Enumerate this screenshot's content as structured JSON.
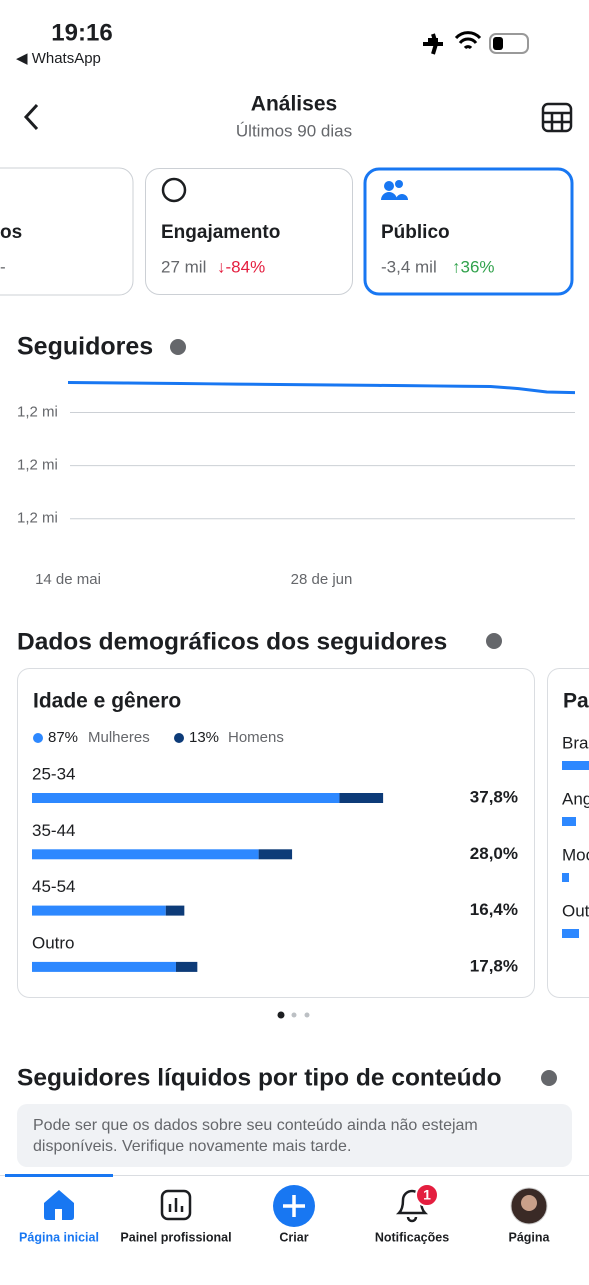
{
  "status_bar": {
    "time": "19:16",
    "back_app": "◀ WhatsApp"
  },
  "header": {
    "title": "Análises",
    "subtitle": "Últimos 90 dias"
  },
  "metric_cards": [
    {
      "title": "os",
      "value": "-"
    },
    {
      "title": "Engajamento",
      "value": "27 mil",
      "change": "↓-84%"
    },
    {
      "title": "Público",
      "value": "-3,4 mil",
      "change": "↑36%"
    }
  ],
  "followers": {
    "title": "Seguidores",
    "chart_data": {
      "type": "line",
      "color": "#1877f2",
      "grid": true,
      "categories": [
        "14 de mai",
        null,
        null,
        null,
        null,
        null,
        null,
        null,
        null,
        "28 de jun",
        null,
        null,
        null,
        null,
        null,
        null,
        null,
        null,
        null
      ],
      "values": [
        1215130,
        1215120,
        1215110,
        1215100,
        1215090,
        1215080,
        1215070,
        1215060,
        1215050,
        1215040,
        1215030,
        1215020,
        1215010,
        1215000,
        1214990,
        1214980,
        1214900,
        1214770,
        1214750
      ],
      "ylim": [
        1209200,
        1215600
      ],
      "yticks": [
        {
          "value": 1214000,
          "label": "1,2 mi"
        },
        {
          "value": 1212000,
          "label": "1,2 mi"
        },
        {
          "value": 1210000,
          "label": "1,2 mi"
        }
      ]
    }
  },
  "demographics": {
    "title": "Dados demográficos dos seguidores",
    "age_gender": {
      "title": "Idade e gênero",
      "legend_percents": [
        "87%",
        "13%"
      ],
      "chart_data": {
        "type": "bar",
        "orientation": "horizontal",
        "stacked": true,
        "categories": [
          "25-34",
          "35-44",
          "45-54",
          "Outro"
        ],
        "series": [
          {
            "name": "Mulheres",
            "color": "#2d88ff",
            "values": [
              33.1,
              24.4,
              14.4,
              15.5
            ]
          },
          {
            "name": "Homens",
            "color": "#0d3b78",
            "values": [
              4.7,
              3.6,
              2.0,
              2.3
            ]
          }
        ],
        "value_labels": [
          "37,8%",
          "28,0%",
          "16,4%",
          "17,8%"
        ],
        "xlim": [
          0,
          52
        ]
      }
    },
    "next_card": {
      "title": "Pa",
      "items": [
        "Bra",
        "Ang",
        "Moc",
        "Out"
      ]
    }
  },
  "net_followers": {
    "title": "Seguidores líquidos por tipo de conteúdo",
    "notice_lines": [
      "Pode ser que os dados sobre seu conteúdo ainda não estejam",
      "disponíveis. Verifique novamente mais tarde."
    ]
  },
  "tab_bar": {
    "tabs": [
      "Página inicial",
      "Painel profissional",
      "Criar",
      "Notificações",
      "Página"
    ],
    "notification_badge": "1"
  }
}
